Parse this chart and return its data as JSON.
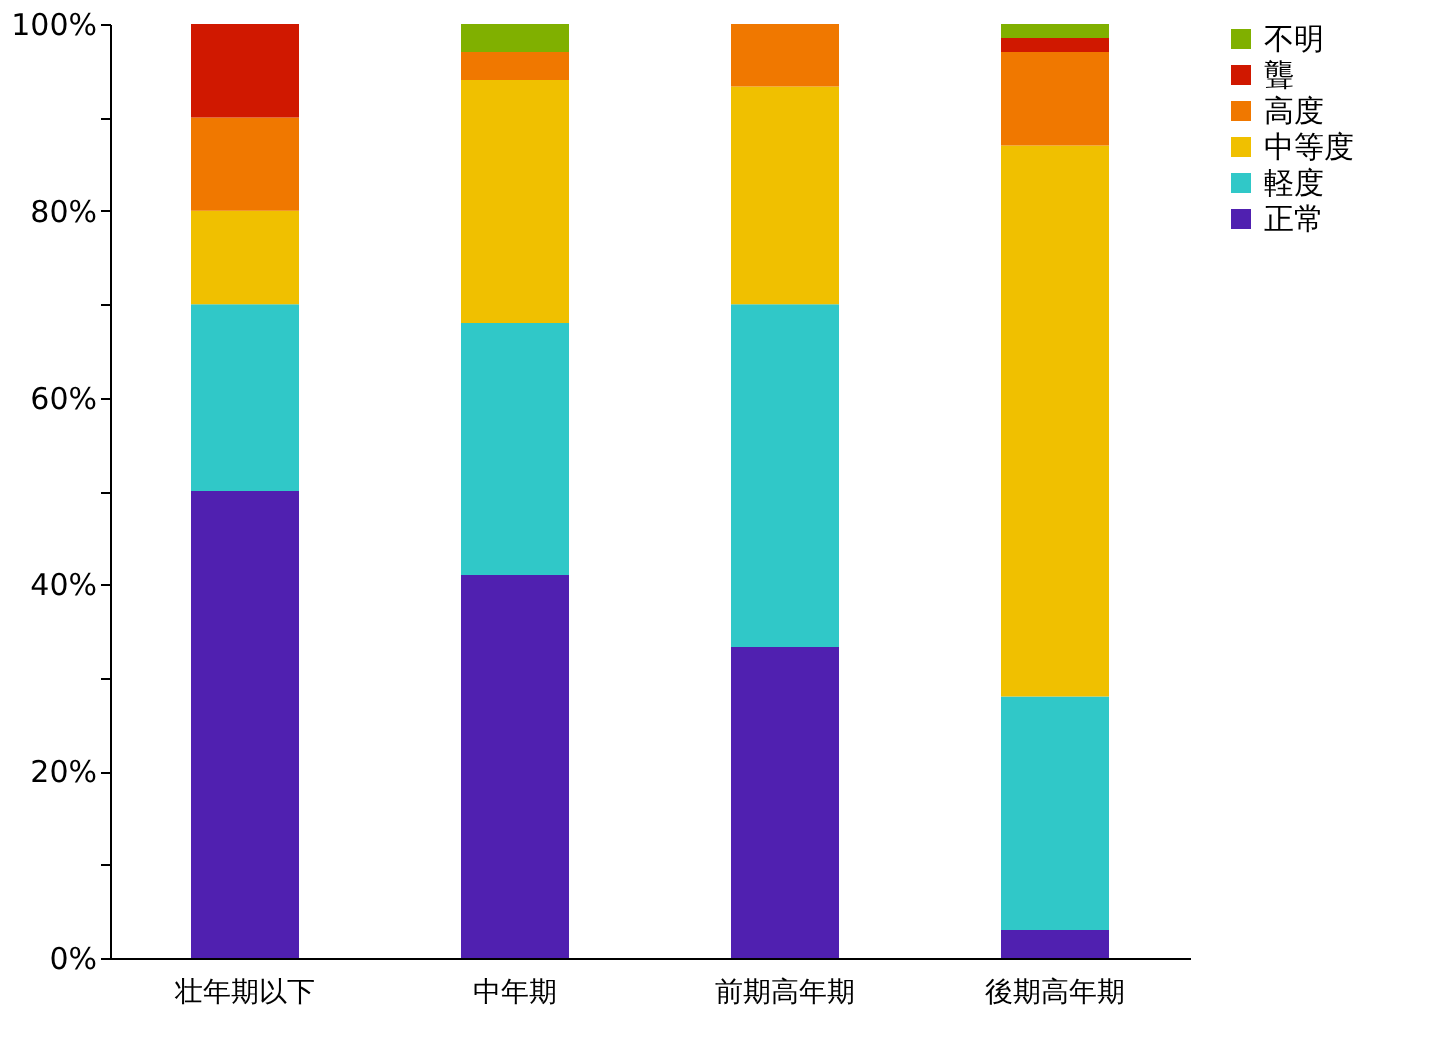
{
  "chart_data": {
    "type": "bar",
    "stacked": true,
    "categories": [
      "壮年期以下",
      "中年期",
      "前期高年期",
      "後期高年期"
    ],
    "series": [
      {
        "name": "正常",
        "color": "#5020b0",
        "values": [
          50,
          41,
          33.3,
          3
        ]
      },
      {
        "name": "軽度",
        "color": "#30c8c8",
        "values": [
          20,
          27,
          36.7,
          25
        ]
      },
      {
        "name": "中等度",
        "color": "#f0c000",
        "values": [
          10,
          26,
          23.3,
          59
        ]
      },
      {
        "name": "高度",
        "color": "#f07800",
        "values": [
          10,
          3,
          6.7,
          10
        ]
      },
      {
        "name": "聾",
        "color": "#d01800",
        "values": [
          10,
          0,
          0,
          1.5
        ]
      },
      {
        "name": "不明",
        "color": "#80b000",
        "values": [
          0,
          3,
          0,
          1.5
        ]
      }
    ],
    "ylim": [
      0,
      100
    ],
    "yticks": [
      {
        "value": 0,
        "label": "0%"
      },
      {
        "value": 10,
        "label": null
      },
      {
        "value": 20,
        "label": "20%"
      },
      {
        "value": 30,
        "label": null
      },
      {
        "value": 40,
        "label": "40%"
      },
      {
        "value": 50,
        "label": null
      },
      {
        "value": 60,
        "label": "60%"
      },
      {
        "value": 70,
        "label": null
      },
      {
        "value": 80,
        "label": "80%"
      },
      {
        "value": 90,
        "label": null
      },
      {
        "value": 100,
        "label": "100%"
      }
    ],
    "grid": false,
    "legend": "right"
  }
}
